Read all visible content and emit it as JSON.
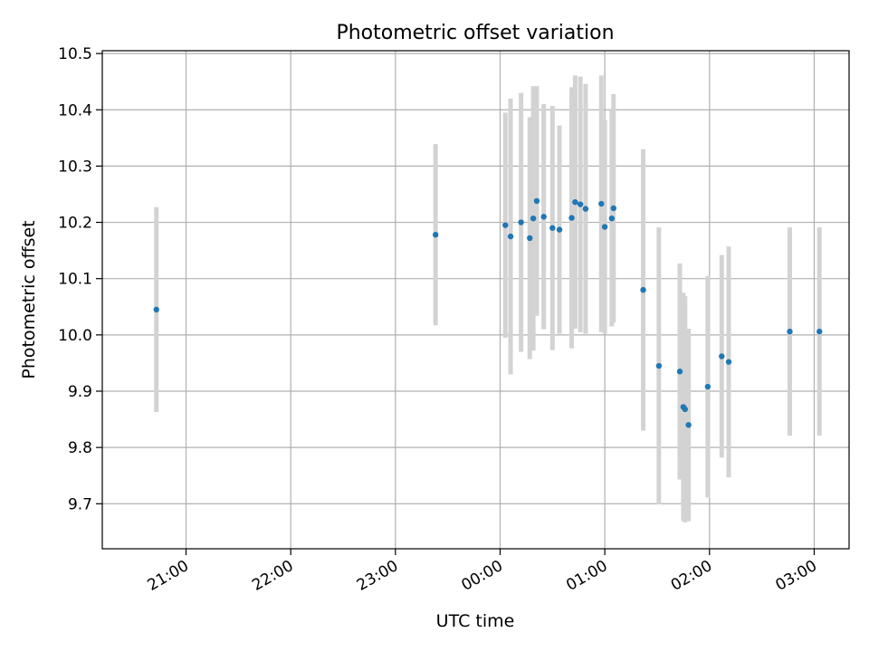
{
  "chart_data": {
    "type": "scatter",
    "title": "Photometric offset variation",
    "xlabel": "UTC time",
    "ylabel": "Photometric offset",
    "grid": true,
    "x_unit": "UTC time of day (hours past 20:00 on first night)",
    "xlim": [
      "20:12",
      "03:20"
    ],
    "ylim": [
      9.62,
      10.505
    ],
    "x_ticks": [
      "21:00",
      "22:00",
      "23:00",
      "00:00",
      "01:00",
      "02:00",
      "03:00"
    ],
    "y_ticks": [
      "9.7",
      "9.8",
      "9.9",
      "10.0",
      "10.1",
      "10.2",
      "10.3",
      "10.4",
      "10.5"
    ],
    "series": [
      {
        "marker_color": "#1f77b4",
        "errorbar_color": "#d3d3d3",
        "points": [
          {
            "x": "20:43",
            "y": 10.045,
            "err": 0.182
          },
          {
            "x": "23:23",
            "y": 10.178,
            "err": 0.161
          },
          {
            "x": "00:03",
            "y": 10.195,
            "err": 0.2
          },
          {
            "x": "00:06",
            "y": 10.175,
            "err": 0.245
          },
          {
            "x": "00:12",
            "y": 10.2,
            "err": 0.23
          },
          {
            "x": "00:17",
            "y": 10.172,
            "err": 0.215
          },
          {
            "x": "00:19",
            "y": 10.207,
            "err": 0.235
          },
          {
            "x": "00:21",
            "y": 10.238,
            "err": 0.204
          },
          {
            "x": "00:25",
            "y": 10.21,
            "err": 0.2
          },
          {
            "x": "00:30",
            "y": 10.19,
            "err": 0.217
          },
          {
            "x": "00:34",
            "y": 10.187,
            "err": 0.185
          },
          {
            "x": "00:41",
            "y": 10.208,
            "err": 0.232
          },
          {
            "x": "00:43",
            "y": 10.236,
            "err": 0.225
          },
          {
            "x": "00:46",
            "y": 10.232,
            "err": 0.227
          },
          {
            "x": "00:49",
            "y": 10.224,
            "err": 0.222
          },
          {
            "x": "00:58",
            "y": 10.233,
            "err": 0.228
          },
          {
            "x": "01:00",
            "y": 10.192,
            "err": 0.19
          },
          {
            "x": "01:04",
            "y": 10.207,
            "err": 0.192
          },
          {
            "x": "01:05",
            "y": 10.225,
            "err": 0.203
          },
          {
            "x": "01:22",
            "y": 10.08,
            "err": 0.25
          },
          {
            "x": "01:31",
            "y": 9.945,
            "err": 0.246
          },
          {
            "x": "01:43",
            "y": 9.935,
            "err": 0.192
          },
          {
            "x": "01:45",
            "y": 9.872,
            "err": 0.203
          },
          {
            "x": "01:46",
            "y": 9.868,
            "err": 0.201
          },
          {
            "x": "01:48",
            "y": 9.84,
            "err": 0.171
          },
          {
            "x": "01:59",
            "y": 9.908,
            "err": 0.197
          },
          {
            "x": "02:07",
            "y": 9.962,
            "err": 0.18
          },
          {
            "x": "02:11",
            "y": 9.952,
            "err": 0.205
          },
          {
            "x": "02:46",
            "y": 10.006,
            "err": 0.185
          },
          {
            "x": "03:03",
            "y": 10.006,
            "err": 0.185
          }
        ]
      }
    ]
  }
}
